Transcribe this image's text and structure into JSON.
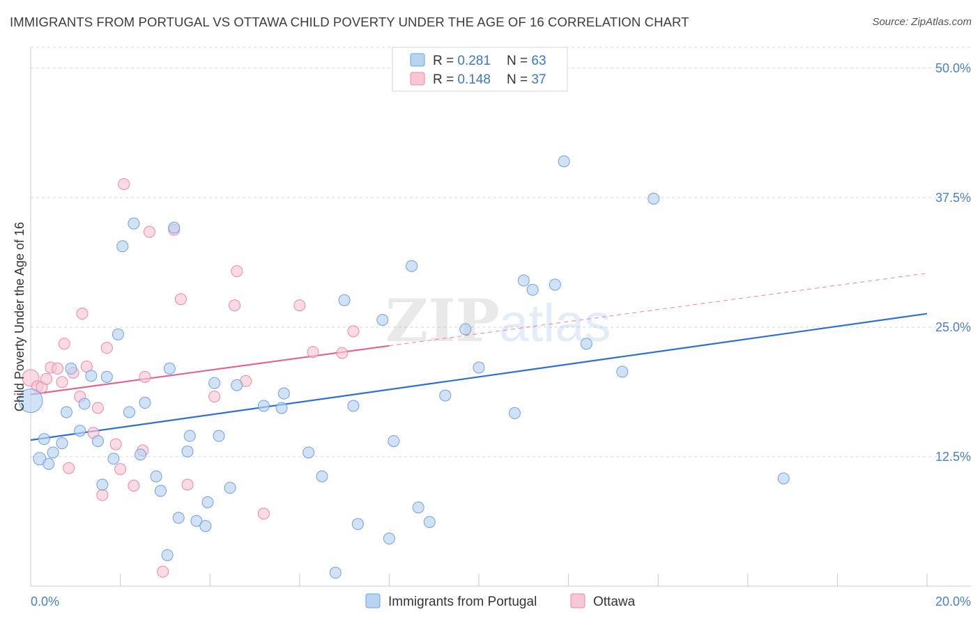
{
  "title": "IMMIGRANTS FROM PORTUGAL VS OTTAWA CHILD POVERTY UNDER THE AGE OF 16 CORRELATION CHART",
  "source": "Source: ZipAtlas.com",
  "watermark": {
    "zip": "ZIP",
    "atlas": "atlas"
  },
  "colors": {
    "blue_fill": "#b9d3f2",
    "blue_stroke": "#6fa0dc",
    "blue_line": "#2f6fd0",
    "pink_fill": "#f8c7d6",
    "pink_stroke": "#e889a8",
    "pink_line": "#e0668f",
    "grid": "#d8d8d8",
    "tick_label": "#4a7fc4"
  },
  "legend": {
    "rows": [
      {
        "r_label": "R = ",
        "r_value": "0.281",
        "n_label": "N = ",
        "n_value": "63"
      },
      {
        "r_label": "R = ",
        "r_value": "0.148",
        "n_label": "N = ",
        "n_value": "37"
      }
    ]
  },
  "bottom_legend": [
    "Immigrants from Portugal",
    "Ottawa"
  ],
  "chart_data": {
    "type": "scatter",
    "title": "IMMIGRANTS FROM PORTUGAL VS OTTAWA CHILD POVERTY UNDER THE AGE OF 16 CORRELATION CHART",
    "xlabel": "",
    "ylabel": "Child Poverty Under the Age of 16",
    "xlim": [
      0,
      20
    ],
    "ylim": [
      0,
      52
    ],
    "x_tick_labels": [
      "0.0%",
      "20.0%"
    ],
    "y_ticks": [
      12.5,
      25.0,
      37.5,
      50.0
    ],
    "y_tick_labels": [
      "12.5%",
      "25.0%",
      "37.5%",
      "50.0%"
    ],
    "grid": true,
    "legend_position": "top-center",
    "series": [
      {
        "name": "Immigrants from Portugal",
        "R": 0.281,
        "N": 63,
        "trend": {
          "x0": 0,
          "y0": 14.1,
          "x1": 20,
          "y1": 26.3
        },
        "points": [
          [
            0.0,
            17.9,
            34
          ],
          [
            0.2,
            12.3,
            18
          ],
          [
            0.3,
            14.2,
            16
          ],
          [
            0.4,
            11.8,
            16
          ],
          [
            0.5,
            12.9,
            16
          ],
          [
            0.7,
            13.8,
            16
          ],
          [
            0.8,
            16.8,
            16
          ],
          [
            0.9,
            21.0,
            16
          ],
          [
            1.1,
            15.0,
            16
          ],
          [
            1.2,
            17.6,
            16
          ],
          [
            1.35,
            20.3,
            16
          ],
          [
            1.5,
            14.0,
            16
          ],
          [
            1.6,
            9.8,
            16
          ],
          [
            1.7,
            20.2,
            16
          ],
          [
            1.85,
            12.3,
            16
          ],
          [
            1.95,
            24.3,
            16
          ],
          [
            2.05,
            32.8,
            16
          ],
          [
            2.2,
            16.8,
            16
          ],
          [
            2.3,
            35.0,
            16
          ],
          [
            2.45,
            12.7,
            16
          ],
          [
            2.55,
            17.7,
            16
          ],
          [
            2.8,
            10.6,
            16
          ],
          [
            2.9,
            9.2,
            16
          ],
          [
            3.05,
            3.0,
            16
          ],
          [
            3.1,
            21.0,
            16
          ],
          [
            3.2,
            34.6,
            16
          ],
          [
            3.3,
            6.6,
            16
          ],
          [
            3.5,
            13.0,
            16
          ],
          [
            3.55,
            14.5,
            16
          ],
          [
            3.7,
            6.3,
            16
          ],
          [
            3.9,
            5.8,
            16
          ],
          [
            3.95,
            8.1,
            16
          ],
          [
            4.1,
            19.6,
            16
          ],
          [
            4.2,
            14.5,
            16
          ],
          [
            4.45,
            9.5,
            16
          ],
          [
            4.6,
            19.4,
            16
          ],
          [
            5.2,
            17.4,
            16
          ],
          [
            5.6,
            17.2,
            16
          ],
          [
            5.65,
            18.6,
            16
          ],
          [
            6.2,
            12.9,
            16
          ],
          [
            6.5,
            10.6,
            16
          ],
          [
            6.8,
            1.3,
            16
          ],
          [
            7.0,
            27.6,
            16
          ],
          [
            7.2,
            17.4,
            16
          ],
          [
            7.3,
            6.0,
            16
          ],
          [
            7.85,
            25.7,
            16
          ],
          [
            8.0,
            4.6,
            16
          ],
          [
            8.1,
            14.0,
            16
          ],
          [
            8.5,
            30.9,
            16
          ],
          [
            8.65,
            7.6,
            16
          ],
          [
            8.9,
            6.2,
            16
          ],
          [
            9.25,
            18.4,
            16
          ],
          [
            9.7,
            24.8,
            16
          ],
          [
            10.0,
            21.1,
            16
          ],
          [
            10.8,
            16.7,
            16
          ],
          [
            11.0,
            29.5,
            16
          ],
          [
            11.2,
            28.6,
            16
          ],
          [
            11.7,
            29.1,
            16
          ],
          [
            11.9,
            41.0,
            16
          ],
          [
            12.4,
            23.4,
            16
          ],
          [
            13.2,
            20.7,
            16
          ],
          [
            13.9,
            37.4,
            16
          ],
          [
            16.8,
            10.4,
            16
          ]
        ]
      },
      {
        "name": "Ottawa",
        "R": 0.148,
        "N": 37,
        "trend": {
          "x0": 0,
          "y0": 18.5,
          "x1": 8.0,
          "y1": 23.2,
          "dash_x0": 8.0,
          "dash_y0": 23.2,
          "dash_x1": 20,
          "dash_y1": 30.2
        },
        "points": [
          [
            0.0,
            20.1,
            24
          ],
          [
            0.15,
            19.3,
            16
          ],
          [
            0.25,
            19.2,
            16
          ],
          [
            0.35,
            20.0,
            16
          ],
          [
            0.45,
            21.1,
            16
          ],
          [
            0.6,
            21.0,
            16
          ],
          [
            0.7,
            19.7,
            16
          ],
          [
            0.75,
            23.4,
            16
          ],
          [
            0.85,
            11.4,
            16
          ],
          [
            0.95,
            20.6,
            16
          ],
          [
            1.1,
            18.3,
            16
          ],
          [
            1.15,
            26.3,
            16
          ],
          [
            1.25,
            21.2,
            16
          ],
          [
            1.4,
            14.8,
            16
          ],
          [
            1.5,
            17.2,
            16
          ],
          [
            1.6,
            8.8,
            16
          ],
          [
            1.7,
            23.0,
            16
          ],
          [
            1.9,
            13.7,
            16
          ],
          [
            2.0,
            11.3,
            16
          ],
          [
            2.3,
            9.7,
            16
          ],
          [
            2.5,
            13.1,
            16
          ],
          [
            2.55,
            20.2,
            16
          ],
          [
            2.65,
            34.2,
            16
          ],
          [
            2.95,
            1.4,
            16
          ],
          [
            3.2,
            34.4,
            16
          ],
          [
            3.35,
            27.7,
            16
          ],
          [
            3.5,
            9.8,
            16
          ],
          [
            4.1,
            18.3,
            16
          ],
          [
            4.55,
            27.1,
            16
          ],
          [
            4.6,
            30.4,
            16
          ],
          [
            4.8,
            19.8,
            16
          ],
          [
            5.2,
            7.0,
            16
          ],
          [
            6.0,
            27.1,
            16
          ],
          [
            6.3,
            22.6,
            16
          ],
          [
            6.95,
            22.5,
            16
          ],
          [
            7.2,
            24.6,
            16
          ],
          [
            2.08,
            38.8,
            16
          ]
        ]
      }
    ]
  }
}
